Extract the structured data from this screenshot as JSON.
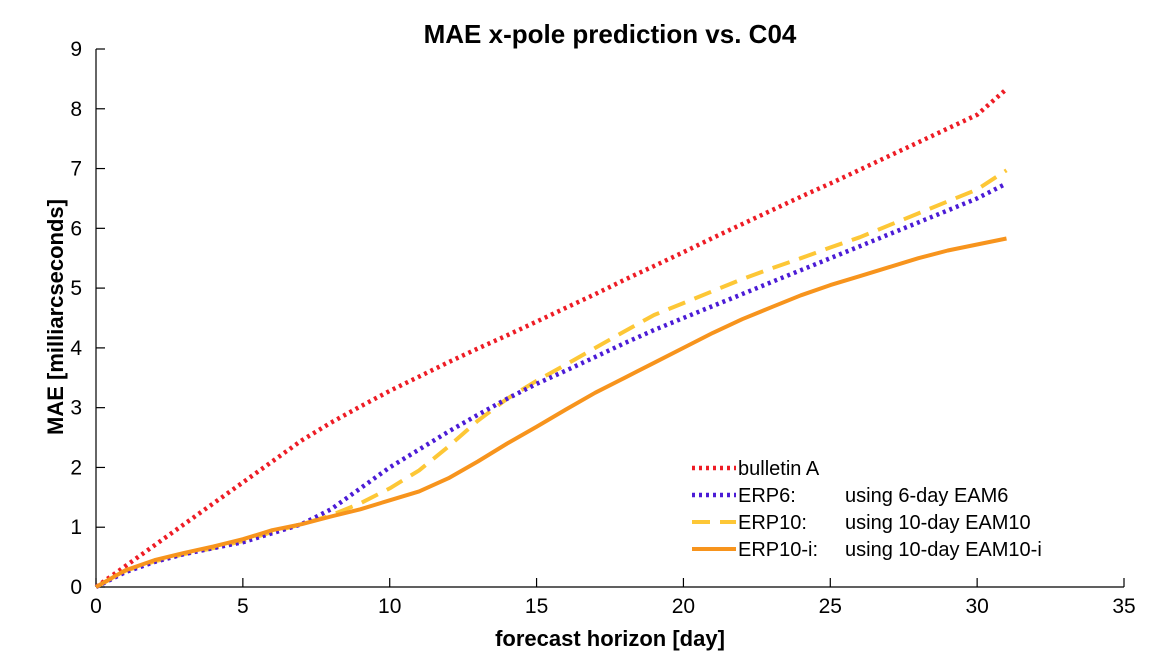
{
  "chart_data": {
    "type": "line",
    "title": "MAE x-pole prediction vs. C04",
    "xlabel": "forecast horizon [day]",
    "ylabel": "MAE [milliarcseconds]",
    "xlim": [
      0,
      35
    ],
    "ylim": [
      0,
      9
    ],
    "xticks": [
      0,
      5,
      10,
      15,
      20,
      25,
      30,
      35
    ],
    "yticks": [
      0,
      1,
      2,
      3,
      4,
      5,
      6,
      7,
      8,
      9
    ],
    "grid": false,
    "legend_position": "bottom-right",
    "series": [
      {
        "name": "bulletin A",
        "legend_label": "bulletin A",
        "legend_desc": "",
        "color": "#ee1c25",
        "style": "dotted",
        "x": [
          0,
          1,
          2,
          3,
          4,
          5,
          6,
          7,
          8,
          9,
          10,
          11,
          12,
          13,
          14,
          15,
          16,
          17,
          18,
          19,
          20,
          21,
          22,
          23,
          24,
          25,
          26,
          27,
          28,
          29,
          30,
          31
        ],
        "y": [
          0.0,
          0.35,
          0.7,
          1.05,
          1.4,
          1.75,
          2.1,
          2.45,
          2.75,
          3.02,
          3.28,
          3.52,
          3.76,
          3.99,
          4.21,
          4.44,
          4.67,
          4.9,
          5.14,
          5.37,
          5.6,
          5.84,
          6.07,
          6.3,
          6.53,
          6.75,
          6.98,
          7.21,
          7.44,
          7.67,
          7.9,
          8.33
        ]
      },
      {
        "name": "ERP6",
        "legend_label": "ERP6:",
        "legend_desc": "using 6-day EAM6",
        "color": "#4b1bd6",
        "style": "dotted",
        "x": [
          0,
          1,
          2,
          3,
          4,
          5,
          6,
          7,
          8,
          9,
          10,
          11,
          12,
          13,
          14,
          15,
          16,
          17,
          18,
          19,
          20,
          21,
          22,
          23,
          24,
          25,
          26,
          27,
          28,
          29,
          30,
          31
        ],
        "y": [
          0.0,
          0.25,
          0.42,
          0.55,
          0.65,
          0.75,
          0.9,
          1.05,
          1.3,
          1.65,
          2.0,
          2.3,
          2.6,
          2.88,
          3.15,
          3.4,
          3.62,
          3.85,
          4.08,
          4.3,
          4.5,
          4.7,
          4.9,
          5.1,
          5.3,
          5.5,
          5.7,
          5.9,
          6.1,
          6.3,
          6.5,
          6.75
        ]
      },
      {
        "name": "ERP10",
        "legend_label": "ERP10:",
        "legend_desc": "using 10-day EAM10",
        "color": "#fdc736",
        "style": "dashed",
        "x": [
          0,
          1,
          2,
          3,
          4,
          5,
          6,
          7,
          8,
          9,
          10,
          11,
          12,
          13,
          14,
          15,
          16,
          17,
          18,
          19,
          20,
          21,
          22,
          23,
          24,
          25,
          26,
          27,
          28,
          29,
          30,
          31
        ],
        "y": [
          0.0,
          0.27,
          0.43,
          0.55,
          0.65,
          0.77,
          0.92,
          1.05,
          1.2,
          1.4,
          1.65,
          1.95,
          2.35,
          2.78,
          3.15,
          3.45,
          3.72,
          4.0,
          4.28,
          4.55,
          4.75,
          4.95,
          5.15,
          5.33,
          5.5,
          5.68,
          5.85,
          6.05,
          6.25,
          6.45,
          6.65,
          6.97
        ]
      },
      {
        "name": "ERP10-i",
        "legend_label": "ERP10-i:",
        "legend_desc": "using 10-day EAM10-i",
        "color": "#f7941d",
        "style": "solid",
        "x": [
          0,
          1,
          2,
          3,
          4,
          5,
          6,
          7,
          8,
          9,
          10,
          11,
          12,
          13,
          14,
          15,
          16,
          17,
          18,
          19,
          20,
          21,
          22,
          23,
          24,
          25,
          26,
          27,
          28,
          29,
          30,
          31
        ],
        "y": [
          0.0,
          0.28,
          0.45,
          0.57,
          0.68,
          0.8,
          0.95,
          1.05,
          1.18,
          1.3,
          1.45,
          1.6,
          1.82,
          2.1,
          2.4,
          2.68,
          2.97,
          3.25,
          3.5,
          3.75,
          4.0,
          4.25,
          4.48,
          4.68,
          4.88,
          5.05,
          5.2,
          5.35,
          5.5,
          5.63,
          5.73,
          5.83
        ]
      }
    ]
  }
}
